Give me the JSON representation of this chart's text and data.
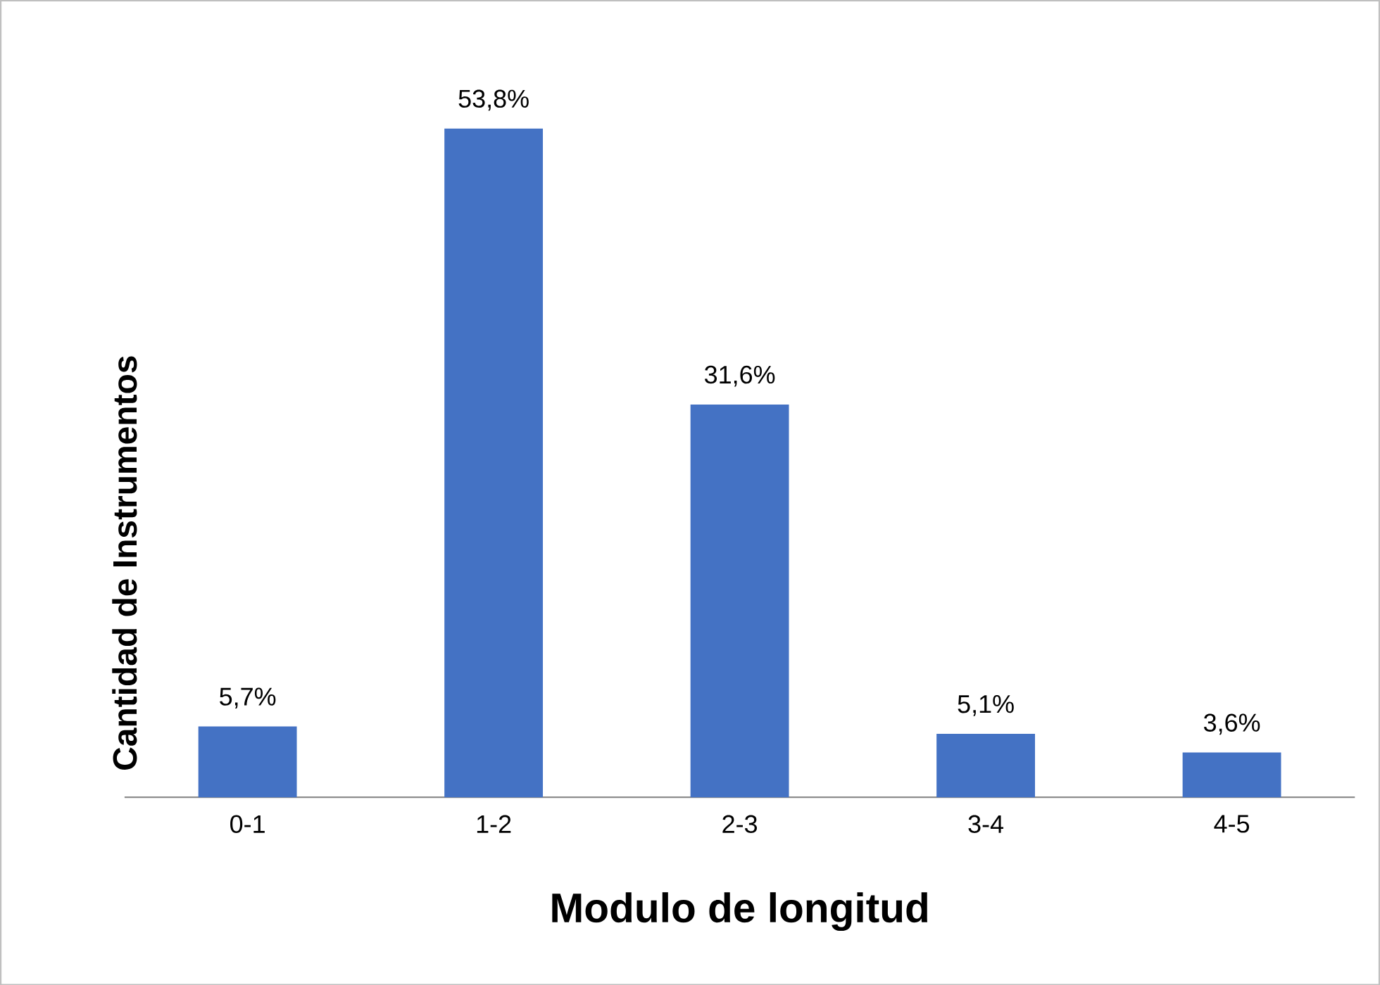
{
  "chart_data": {
    "type": "bar",
    "xlabel": "Modulo de longitud",
    "ylabel": "Cantidad de Instrumentos",
    "categories": [
      "0-1",
      "1-2",
      "2-3",
      "3-4",
      "4-5"
    ],
    "values": [
      5.7,
      53.8,
      31.6,
      5.1,
      3.6
    ],
    "value_labels": [
      "5,7%",
      "53,8%",
      "31,6%",
      "5,1%",
      "3,6%"
    ],
    "color": "#4472c4"
  }
}
